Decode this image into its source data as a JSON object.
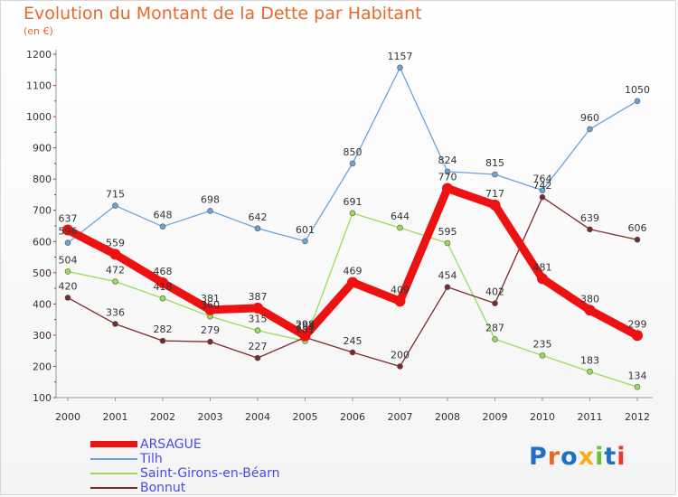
{
  "title": "Evolution du Montant de la Dette par Habitant",
  "unit": "(en €)",
  "logo": {
    "text": "Proxiti",
    "colors": [
      "#1f6fc9",
      "#e8692a",
      "#1f6fc9",
      "#f2b21c",
      "#6cbf3a",
      "#1f6fc9",
      "#e83a2a"
    ]
  },
  "chart_data": {
    "type": "line",
    "title": "Evolution du Montant de la Dette par Habitant",
    "ylabel": "(en €)",
    "xlabel": "",
    "x": [
      "2000",
      "2001",
      "2002",
      "2003",
      "2004",
      "2005",
      "2006",
      "2007",
      "2008",
      "2009",
      "2010",
      "2011",
      "2012"
    ],
    "ylim": [
      100,
      1200
    ],
    "yticks": [
      100,
      200,
      300,
      400,
      500,
      600,
      700,
      800,
      900,
      1000,
      1100,
      1200
    ],
    "grid": false,
    "legend": "bottom-left",
    "series": [
      {
        "name": "ARSAGUE",
        "color": "#ee1111",
        "values": [
          637,
          559,
          468,
          381,
          387,
          298,
          469,
          409,
          770,
          717,
          481,
          380,
          299
        ]
      },
      {
        "name": "Tilh",
        "color": "#6aa3d9",
        "values": [
          596,
          715,
          648,
          698,
          642,
          601,
          850,
          1157,
          824,
          815,
          764,
          960,
          1050
        ]
      },
      {
        "name": "Saint-Girons-en-Béarn",
        "color": "#99dd55",
        "values": [
          504,
          472,
          418,
          360,
          315,
          281,
          691,
          644,
          595,
          287,
          235,
          183,
          134
        ]
      },
      {
        "name": "Bonnut",
        "color": "#7a2a2a",
        "values": [
          420,
          336,
          282,
          279,
          227,
          293,
          245,
          200,
          454,
          402,
          742,
          639,
          606
        ]
      }
    ],
    "value_labels": [
      [
        "637",
        "559",
        "468",
        "381",
        "387",
        "298",
        "469",
        "409",
        "770",
        "717",
        "481",
        "380",
        "299"
      ],
      [
        "596",
        "715",
        "648",
        "698",
        "642",
        "601",
        "850",
        "1157",
        "824",
        "815",
        "764",
        "960",
        "1050"
      ],
      [
        "504",
        "472",
        "418",
        "360",
        "315",
        "281",
        "691",
        "644",
        "595",
        "287",
        "235",
        "183",
        "134"
      ],
      [
        "420",
        "336",
        "282",
        "279",
        "227",
        "293",
        "245",
        "200",
        "454",
        "402",
        "742",
        "639",
        "606"
      ]
    ]
  }
}
